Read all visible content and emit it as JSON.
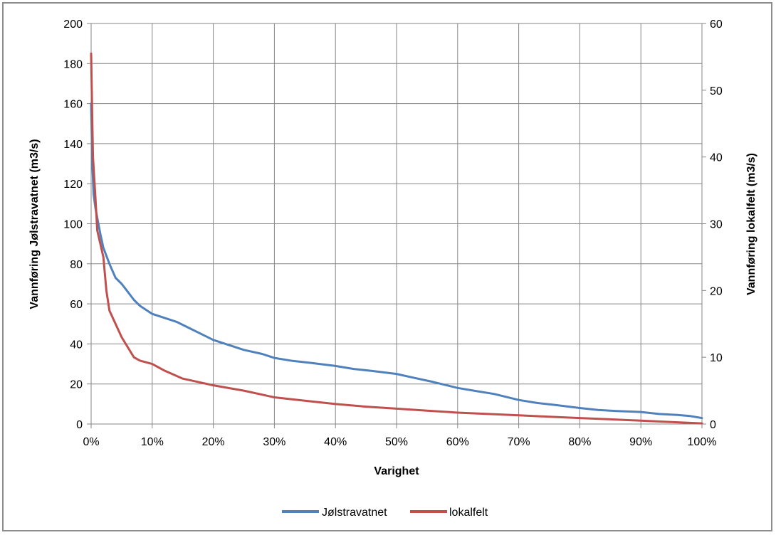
{
  "chart_data": {
    "type": "line",
    "title": "",
    "xlabel": "Varighet",
    "ylabel_left": "Vannføring Jølstravatnet (m3/s)",
    "ylabel_right": "Vannføring lokalfelt (m3/s)",
    "xlim": [
      0,
      100
    ],
    "ylim_left": [
      0,
      200
    ],
    "ylim_right": [
      0,
      60
    ],
    "x_ticks": [
      "0%",
      "10%",
      "20%",
      "30%",
      "40%",
      "50%",
      "60%",
      "70%",
      "80%",
      "90%",
      "100%"
    ],
    "y_left_ticks": [
      "0",
      "20",
      "40",
      "60",
      "80",
      "100",
      "120",
      "140",
      "160",
      "180",
      "200"
    ],
    "y_right_ticks": [
      "0",
      "10",
      "20",
      "30",
      "40",
      "50",
      "60"
    ],
    "grid": true,
    "legend_position": "bottom",
    "series": [
      {
        "name": "Jølstravatnet",
        "axis": "left",
        "color": "#4f81bd",
        "x": [
          0,
          0.2,
          0.4,
          0.7,
          1,
          1.5,
          2,
          3,
          4,
          5,
          6,
          7,
          8,
          10,
          12,
          14,
          16,
          18,
          20,
          22,
          25,
          28,
          30,
          33,
          36,
          40,
          43,
          46,
          50,
          53,
          56,
          60,
          63,
          66,
          70,
          73,
          76,
          80,
          83,
          86,
          90,
          93,
          96,
          98,
          100
        ],
        "y": [
          160,
          130,
          115,
          108,
          103,
          95,
          88,
          80,
          73,
          70,
          66,
          62,
          59,
          55,
          53,
          51,
          48,
          45,
          42,
          40,
          37,
          35,
          33,
          31.5,
          30.5,
          29,
          27.5,
          26.5,
          25,
          23,
          21,
          18,
          16.5,
          15,
          12,
          10.5,
          9.5,
          8,
          7,
          6.5,
          6,
          5,
          4.5,
          4,
          3
        ]
      },
      {
        "name": "lokalfelt",
        "axis": "right",
        "color": "#c0504d",
        "x": [
          0,
          0.1,
          0.2,
          0.3,
          0.5,
          0.7,
          1,
          1.5,
          2,
          2.5,
          3,
          4,
          5,
          6,
          7,
          8,
          10,
          12,
          15,
          18,
          20,
          25,
          30,
          35,
          40,
          45,
          50,
          55,
          60,
          65,
          70,
          75,
          80,
          85,
          90,
          95,
          100
        ],
        "y": [
          55.5,
          50,
          45,
          40,
          37,
          34,
          29,
          27,
          25,
          20,
          17,
          15,
          13,
          11.5,
          10,
          9.5,
          9,
          8,
          6.8,
          6.2,
          5.8,
          5,
          4,
          3.5,
          3,
          2.6,
          2.3,
          2,
          1.7,
          1.5,
          1.3,
          1.1,
          0.9,
          0.7,
          0.5,
          0.3,
          0.1
        ]
      }
    ]
  }
}
